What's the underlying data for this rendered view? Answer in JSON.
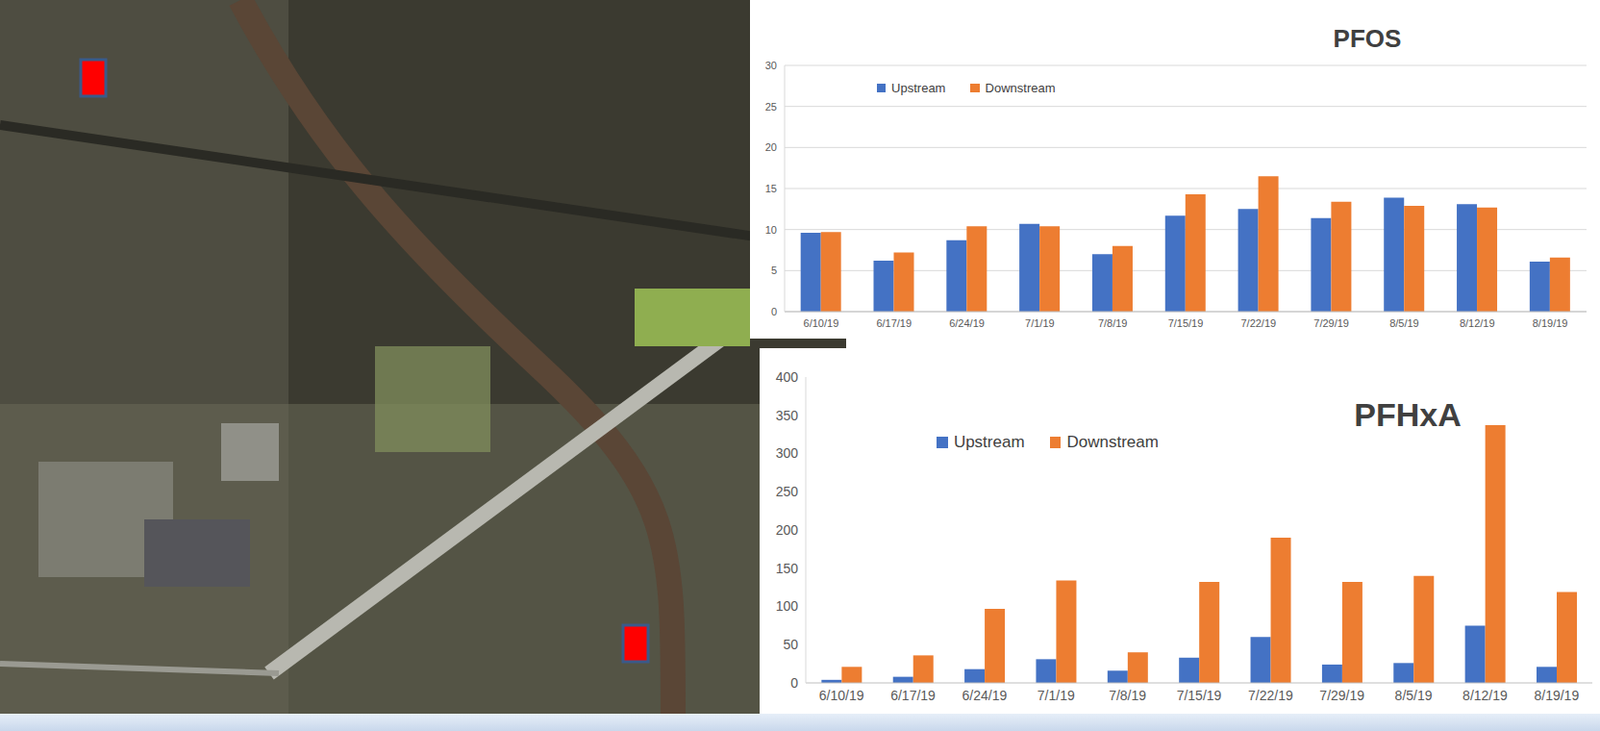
{
  "chart_data": [
    {
      "type": "bar",
      "title": "PFOS",
      "categories": [
        "6/10/19",
        "6/17/19",
        "6/24/19",
        "7/1/19",
        "7/8/19",
        "7/15/19",
        "7/22/19",
        "7/29/19",
        "8/5/19",
        "8/12/19",
        "8/19/19"
      ],
      "series": [
        {
          "name": "Upstream",
          "color": "#4472c4",
          "values": [
            9.6,
            6.2,
            8.7,
            10.7,
            7.0,
            11.7,
            12.5,
            11.4,
            13.9,
            13.1,
            6.1
          ]
        },
        {
          "name": "Downstream",
          "color": "#ed7d31",
          "values": [
            9.7,
            7.2,
            10.4,
            10.4,
            8.0,
            14.3,
            16.5,
            13.4,
            12.9,
            12.7,
            6.6
          ]
        }
      ],
      "ylim": [
        0,
        30
      ],
      "yticks": [
        0,
        5,
        10,
        15,
        20,
        25,
        30
      ],
      "grid": true,
      "legend": "upper left"
    },
    {
      "type": "bar",
      "title": "PFHxA",
      "categories": [
        "6/10/19",
        "6/17/19",
        "6/24/19",
        "7/1/19",
        "7/8/19",
        "7/15/19",
        "7/22/19",
        "7/29/19",
        "8/5/19",
        "8/12/19",
        "8/19/19"
      ],
      "series": [
        {
          "name": "Upstream",
          "color": "#4472c4",
          "values": [
            4,
            8,
            18,
            31,
            16,
            33,
            60,
            24,
            26,
            75,
            21
          ]
        },
        {
          "name": "Downstream",
          "color": "#ed7d31",
          "values": [
            21,
            36,
            97,
            134,
            40,
            132,
            190,
            132,
            140,
            337,
            119
          ]
        }
      ],
      "ylim": [
        0,
        400
      ],
      "yticks": [
        0,
        50,
        100,
        150,
        200,
        250,
        300,
        350,
        400
      ],
      "grid": false,
      "legend": "upper left"
    }
  ]
}
